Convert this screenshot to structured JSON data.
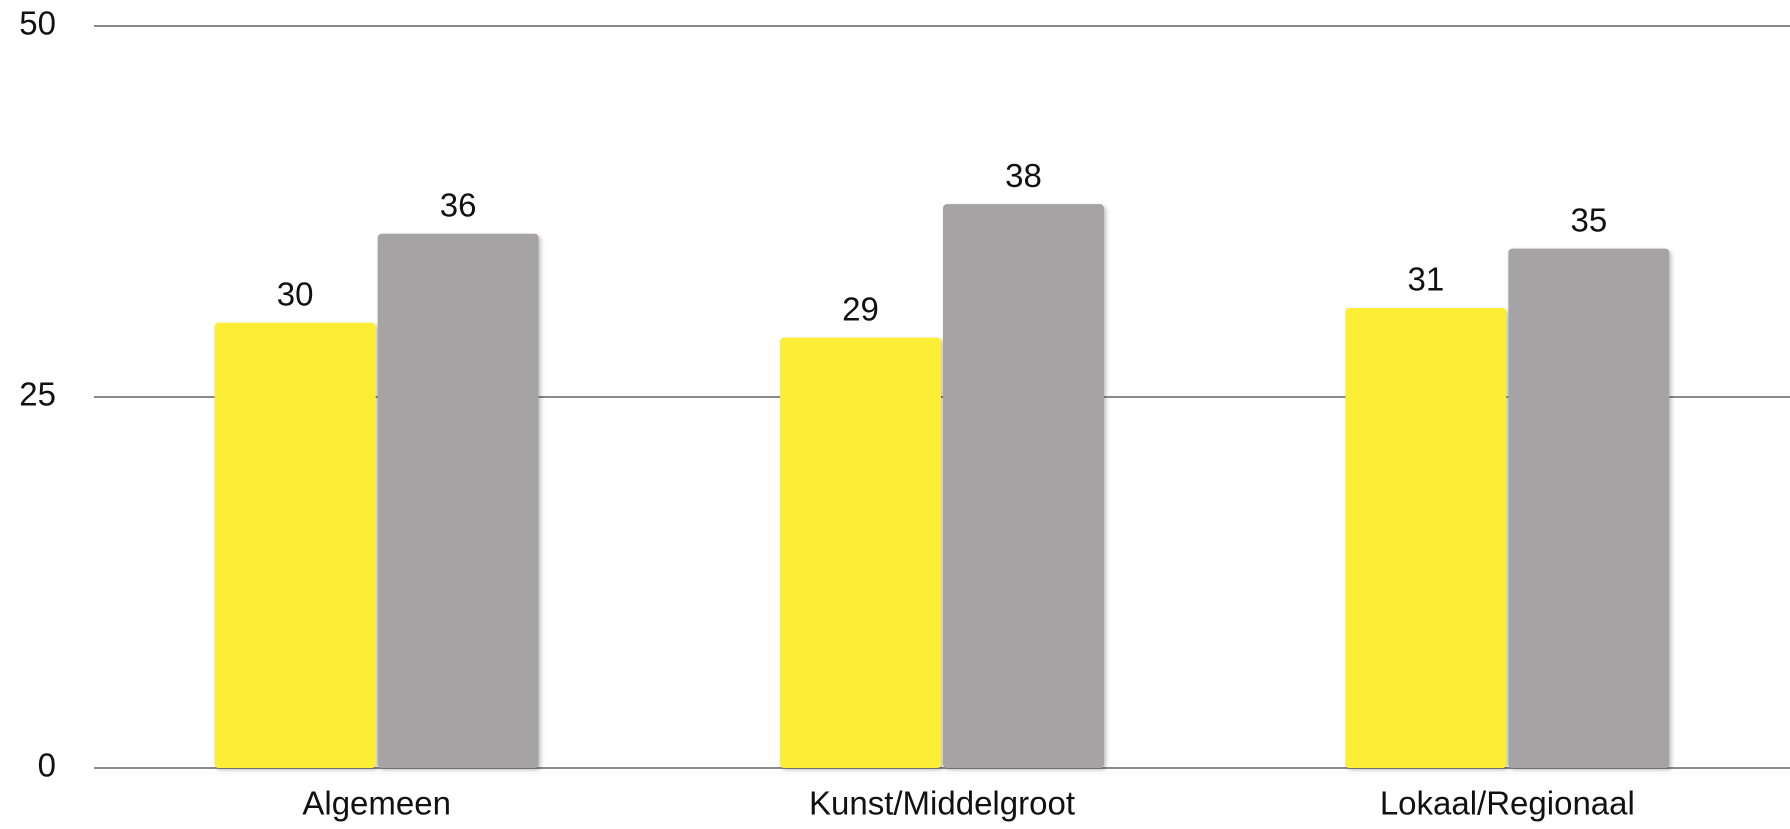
{
  "chart_data": {
    "type": "bar",
    "categories": [
      "Algemeen",
      "Kunst/Middelgroot",
      "Lokaal/Regionaal"
    ],
    "series": [
      {
        "color": "#fced35",
        "values": [
          30,
          29,
          31
        ]
      },
      {
        "color": "#a5a3a4",
        "values": [
          36,
          38,
          35
        ]
      }
    ],
    "ylim": [
      0,
      50
    ],
    "yticks": [
      0,
      25,
      50
    ],
    "grid": true
  }
}
